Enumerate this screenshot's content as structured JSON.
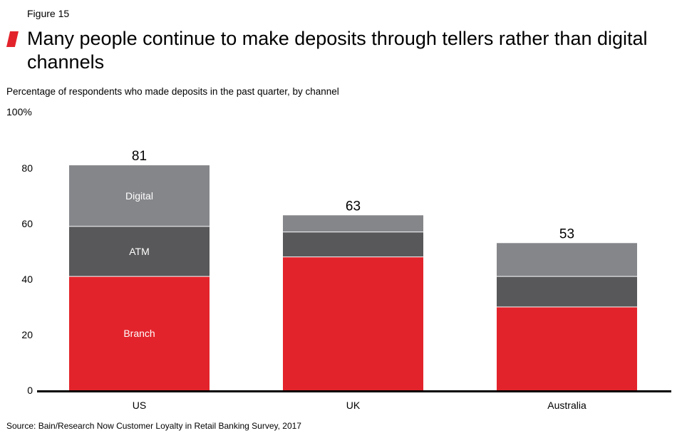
{
  "figure": {
    "label": "Figure 15",
    "source": "Source: Bain/Research Now Customer Loyalty in Retail Banking Survey, 2017"
  },
  "chart_data": {
    "type": "bar",
    "stacked": true,
    "title": "Many people continue to make deposits through tellers rather than digital channels",
    "subtitle": "Percentage of respondents who made deposits in the past quarter, by channel",
    "categories": [
      "US",
      "UK",
      "Australia"
    ],
    "series": [
      {
        "name": "Branch",
        "values": [
          41,
          48,
          30
        ],
        "color": "#e3232b"
      },
      {
        "name": "ATM",
        "values": [
          18,
          9,
          11
        ],
        "color": "#58585a"
      },
      {
        "name": "Digital",
        "values": [
          22,
          6,
          12
        ],
        "color": "#85868a"
      }
    ],
    "totals": [
      81,
      63,
      53
    ],
    "series_labels_on_category": "US",
    "ylim": [
      0,
      100
    ],
    "yticks": [
      0,
      20,
      40,
      60,
      80
    ],
    "ytick_top_label": "100%",
    "grid": false,
    "legend": "none"
  }
}
